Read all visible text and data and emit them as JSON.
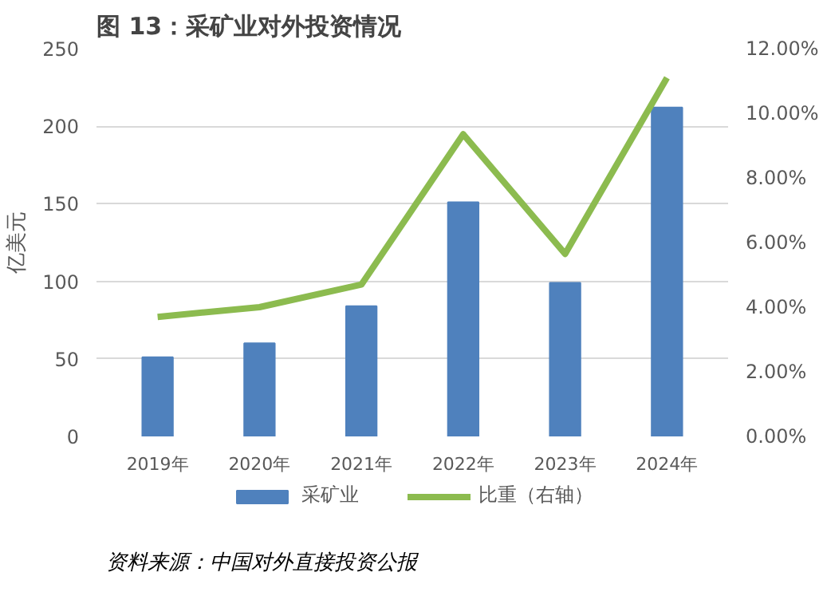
{
  "chart_data": {
    "type": "bar",
    "title": "图 13：采矿业对外投资情况",
    "ylabel": "亿美元",
    "categories": [
      "2019年",
      "2020年",
      "2021年",
      "2022年",
      "2023年",
      "2024年"
    ],
    "series": [
      {
        "name": "采矿业",
        "color": "#4f81bd",
        "values": [
          51,
          60,
          84,
          151,
          99,
          212
        ]
      },
      {
        "name": "比重（右轴）",
        "type": "line",
        "axis": "y2",
        "color": "#8cbb4f",
        "values": [
          3.7,
          4.0,
          4.7,
          9.35,
          5.65,
          11.1
        ]
      }
    ],
    "ylim": [
      0,
      250
    ],
    "yticks": [
      0,
      50,
      100,
      150,
      200,
      250
    ],
    "y2lim": [
      0,
      12
    ],
    "y2ticks": [
      {
        "value": 0,
        "label": "0.00%"
      },
      {
        "value": 2,
        "label": "2.00%"
      },
      {
        "value": 4,
        "label": "4.00%"
      },
      {
        "value": 6,
        "label": "6.00%"
      },
      {
        "value": 8,
        "label": "8.00%"
      },
      {
        "value": 10,
        "label": "10.00%"
      },
      {
        "value": 12,
        "label": "12.00%"
      }
    ],
    "grid": "y",
    "legend": "bottom",
    "annotations": [
      "资料来源：中国对外直接投资公报"
    ]
  }
}
